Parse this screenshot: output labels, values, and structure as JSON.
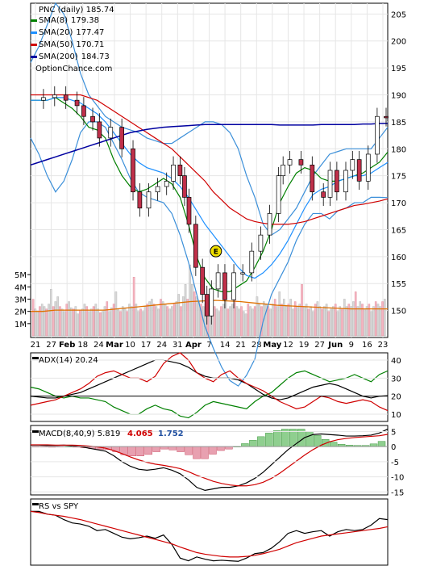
{
  "chart_data": [
    {
      "type": "candlestick",
      "panel": "price",
      "title": "PNC (daily) 185.74",
      "watermark": "OptionChance.com",
      "ylim": [
        145,
        207
      ],
      "yticks": [
        150,
        155,
        160,
        165,
        170,
        175,
        180,
        185,
        190,
        195,
        200,
        205
      ],
      "xticks": [
        "21",
        "27",
        "Feb",
        "18",
        "24",
        "Mar",
        "10",
        "17",
        "24",
        "31",
        "Apr",
        "7",
        "14",
        "21",
        "28",
        "May",
        "12",
        "19",
        "27",
        "Jun",
        "9",
        "16",
        "23"
      ],
      "annotations": [
        {
          "label": "E",
          "x": 82,
          "y": 161
        }
      ],
      "price_points": {
        "x": [
          0,
          5,
          10,
          15,
          20,
          23,
          27,
          30,
          35,
          40,
          45,
          48,
          52,
          56,
          60,
          63,
          66,
          68,
          70,
          73,
          76,
          78,
          80,
          83,
          86,
          90,
          94,
          98,
          102,
          106,
          110,
          112,
          115,
          120,
          125,
          130,
          133,
          136,
          140,
          143,
          146,
          150,
          154,
          158
        ],
        "close": [
          189,
          189.5,
          190,
          189,
          188,
          186,
          185,
          182,
          184,
          180,
          172,
          169,
          172,
          173,
          174,
          177,
          175,
          171,
          166,
          158,
          153,
          149,
          154,
          157,
          152,
          157,
          157,
          161,
          164,
          168,
          175,
          177,
          178,
          177,
          172,
          171,
          176,
          172,
          176,
          178,
          174,
          179,
          186,
          185.74
        ]
      },
      "series": [
        {
          "name": "SMA(8)",
          "legend_value": 179.38,
          "color": "#008000",
          "values": [
            189,
            189,
            189,
            189.5,
            188.5,
            187.5,
            186,
            184,
            183.5,
            182,
            178,
            175,
            173,
            172,
            172.5,
            173.5,
            174.5,
            173.5,
            171,
            166,
            160,
            156,
            154,
            153.5,
            153.5,
            154.5,
            155.5,
            158,
            161,
            165,
            170,
            173,
            175.5,
            176.5,
            176,
            174.5,
            174,
            174,
            174.5,
            175,
            175.5,
            176.5,
            177.5,
            179.38
          ]
        },
        {
          "name": "SMA(20)",
          "legend_value": 177.47,
          "color": "#1e90ff",
          "values": [
            189,
            189,
            189,
            189.5,
            189.5,
            189,
            188.5,
            187.5,
            186.5,
            185,
            183,
            181,
            179,
            177.5,
            176.5,
            176,
            175.5,
            174.5,
            173,
            171,
            168.5,
            166,
            164,
            162,
            160,
            158,
            156.5,
            156,
            157,
            158.5,
            160.5,
            163,
            166,
            169,
            171.5,
            172.5,
            173,
            174,
            174.5,
            175,
            175,
            175.5,
            176.5,
            177.47
          ]
        },
        {
          "name": "SMA(50)",
          "legend_value": 170.71,
          "color": "#d00000",
          "values": [
            190,
            190,
            190,
            190,
            190,
            190,
            190,
            189.5,
            189,
            188,
            187,
            186,
            185,
            184,
            183,
            182,
            181,
            180,
            178.5,
            177,
            175.5,
            174,
            172,
            170.5,
            169,
            168,
            167,
            166.5,
            166.2,
            166,
            166,
            166,
            166.2,
            166.5,
            167,
            167.5,
            168,
            168.5,
            169,
            169.5,
            169.7,
            170,
            170.3,
            170.71
          ]
        },
        {
          "name": "SMA(200)",
          "legend_value": 184.73,
          "color": "#0000a0",
          "values": [
            177,
            177.5,
            178,
            178.5,
            179,
            179.5,
            180,
            180.5,
            181,
            181.5,
            182,
            182.5,
            183,
            183.3,
            183.6,
            183.8,
            184,
            184.1,
            184.2,
            184.3,
            184.4,
            184.5,
            184.5,
            184.5,
            184.5,
            184.5,
            184.5,
            184.5,
            184.5,
            184.5,
            184.4,
            184.4,
            184.4,
            184.4,
            184.4,
            184.5,
            184.5,
            184.5,
            184.5,
            184.5,
            184.6,
            184.6,
            184.7,
            184.73
          ]
        }
      ],
      "bollinger": {
        "upper": [
          196,
          199,
          203,
          207,
          205,
          200,
          194,
          190,
          188,
          186,
          185,
          184,
          183.5,
          183,
          182,
          181.5,
          181,
          181,
          182,
          183,
          184,
          185,
          185,
          184.5,
          183,
          180,
          175,
          171,
          166,
          164,
          165,
          167,
          169,
          172,
          175,
          177,
          179,
          179.5,
          180,
          180,
          180,
          180,
          182,
          184
        ]
      }
    },
    {
      "type": "bar",
      "panel": "volume",
      "yticks": [
        "1M",
        "2M",
        "3M",
        "4M",
        "5M"
      ],
      "ylim": [
        0,
        6
      ],
      "values": [
        3.0,
        2.2,
        2.0,
        2.4,
        2.6,
        2.4,
        2.2,
        2.6,
        3.8,
        2.4,
        2.8,
        3.2,
        2.4,
        2.2,
        2.0,
        2.6,
        2.8,
        2.3,
        2.2,
        2.4,
        1.8,
        2.1,
        2.2,
        2.6,
        2.4,
        2.0,
        2.2,
        2.4,
        2.6,
        2.2,
        1.9,
        2.0,
        2.4,
        2.8,
        2.0,
        2.3,
        2.6,
        3.6,
        2.2,
        2.0,
        2.4,
        2.3,
        2.0,
        2.6,
        2.4,
        4.8,
        2.6,
        2.0,
        2.2,
        2.0,
        2.4,
        2.6,
        2.8,
        3.0,
        2.6,
        2.4,
        2.2,
        3.0,
        2.8,
        2.6,
        2.4,
        2.2,
        2.4,
        2.6,
        2.8,
        3.4,
        2.4,
        3.2,
        4.2,
        3.0,
        5.8,
        4.2,
        3.6,
        3.2,
        2.8,
        2.6,
        2.4,
        2.6,
        2.2,
        2.0,
        2.6,
        2.4,
        2.2,
        2.0,
        2.4,
        2.6,
        2.8,
        2.2,
        2.4,
        2.6,
        3.8,
        2.4,
        2.2,
        2.4,
        2.0,
        1.8,
        2.6,
        2.4,
        2.2,
        2.4,
        3.2,
        2.6,
        2.4,
        2.8,
        2.6,
        2.4,
        2.2,
        2.6,
        3.0,
        2.4,
        3.6,
        2.6,
        3.0,
        2.4,
        2.6,
        3.0,
        2.2,
        2.8,
        2.4,
        2.6,
        4.2,
        2.4,
        2.6,
        2.2,
        2.4,
        2.0,
        2.6,
        2.8,
        2.4,
        2.2,
        2.4,
        2.6,
        2.0,
        2.2,
        2.4,
        2.6,
        2.0,
        2.4,
        2.2,
        3.0,
        2.4,
        2.6,
        2.4,
        2.8,
        3.6,
        2.4,
        2.8,
        2.6,
        2.2,
        2.4,
        2.6,
        2.0,
        2.4,
        2.8,
        2.6,
        2.4,
        2.8,
        3.0
      ],
      "average": [
        2.0,
        2.0,
        2.1,
        2.1,
        2.1,
        2.1,
        2.1,
        2.2,
        2.3,
        2.4,
        2.5,
        2.6,
        2.7,
        2.8,
        2.85,
        2.9,
        2.85,
        2.8,
        2.7,
        2.6,
        2.5,
        2.45,
        2.4,
        2.35,
        2.3,
        2.25,
        2.2,
        2.2,
        2.2,
        2.2
      ],
      "average_color": "#e07000"
    },
    {
      "type": "line",
      "panel": "ADX",
      "title": "ADX(14) 20.24",
      "ylim": [
        6,
        44
      ],
      "yticks": [
        10,
        20,
        30,
        40
      ],
      "series": [
        {
          "name": "ADX",
          "color": "#000000",
          "values": [
            20,
            19.5,
            19,
            19,
            20,
            21,
            22,
            24,
            26,
            28,
            30,
            32,
            34,
            36,
            38,
            40,
            40,
            39,
            38,
            36,
            33,
            31,
            30,
            30,
            30,
            29,
            27,
            24,
            21,
            19,
            18,
            19,
            21,
            23,
            25,
            26,
            27,
            26,
            24,
            22,
            20,
            19,
            20,
            20.24
          ]
        },
        {
          "name": "+DI",
          "color": "#008000",
          "values": [
            25,
            24,
            22,
            20,
            19,
            20,
            19,
            19,
            18,
            17,
            14,
            12,
            10,
            10,
            13,
            15,
            13,
            12,
            9,
            8,
            11,
            15,
            17,
            16,
            15,
            14,
            13,
            17,
            20,
            22,
            26,
            30,
            33,
            34,
            32,
            30,
            28,
            29,
            30,
            32,
            30,
            28,
            32,
            34
          ]
        },
        {
          "name": "-DI",
          "color": "#d00000",
          "values": [
            15,
            16,
            17,
            18,
            20,
            22,
            24,
            27,
            31,
            33,
            34,
            32,
            30,
            30,
            28,
            31,
            38,
            42,
            44,
            40,
            33,
            30,
            28,
            32,
            34,
            30,
            27,
            25,
            23,
            20,
            17,
            15,
            13,
            14,
            17,
            20,
            19,
            17,
            16,
            17,
            18,
            17,
            14,
            12
          ]
        }
      ]
    },
    {
      "type": "line",
      "panel": "MACD",
      "title": "MACD(8,40,9) 5.819",
      "title_values": [
        "4.065",
        "1.752"
      ],
      "title_value_colors": [
        "#d00000",
        "#1f4fa0"
      ],
      "ylim": [
        -16,
        7
      ],
      "yticks": [
        5,
        0,
        -5,
        -10,
        -15
      ],
      "series": [
        {
          "name": "MACD",
          "color": "#000000",
          "values": [
            0.5,
            0.5,
            0.4,
            0.4,
            0.5,
            0.3,
            0,
            -0.5,
            -1,
            -1.5,
            -3,
            -5,
            -6.5,
            -7.5,
            -7.8,
            -7.5,
            -7,
            -7.8,
            -9,
            -11,
            -13.5,
            -14.5,
            -14,
            -13.5,
            -13.5,
            -13,
            -12,
            -10.5,
            -8.5,
            -6,
            -3.5,
            -1,
            1,
            3,
            4,
            4.2,
            4,
            3.8,
            3.5,
            3.5,
            3.6,
            3.8,
            4.5,
            5.819
          ]
        },
        {
          "name": "Signal",
          "color": "#d00000",
          "values": [
            0.6,
            0.6,
            0.6,
            0.5,
            0.5,
            0.5,
            0.4,
            0.2,
            -0.1,
            -0.5,
            -1.3,
            -2.3,
            -3.4,
            -4.4,
            -5.2,
            -5.8,
            -6.2,
            -6.7,
            -7.3,
            -8.3,
            -9.5,
            -10.5,
            -11.5,
            -12.2,
            -12.7,
            -13,
            -13,
            -12.6,
            -11.8,
            -10.5,
            -8.8,
            -6.8,
            -4.8,
            -2.8,
            -1,
            0.5,
            1.6,
            2.3,
            2.7,
            3,
            3.2,
            3.4,
            3.6,
            4.065
          ]
        },
        {
          "name": "Histogram",
          "color": "#2a8a2a",
          "values": [
            -0.1,
            -0.1,
            -0.2,
            -0.1,
            0,
            -0.2,
            -0.4,
            -0.7,
            -0.9,
            -1.0,
            -1.7,
            -2.7,
            -3.1,
            -3.1,
            -2.6,
            -1.7,
            -0.8,
            -1.1,
            -1.7,
            -2.7,
            -4.0,
            -4.0,
            -2.5,
            -1.3,
            -0.8,
            0,
            1.0,
            2.1,
            3.3,
            4.5,
            5.3,
            5.8,
            5.8,
            5.8,
            5.0,
            3.7,
            2.4,
            1.5,
            0.8,
            0.5,
            0.4,
            0.4,
            0.9,
            1.752
          ]
        }
      ]
    },
    {
      "type": "line",
      "panel": "RS vs SPY",
      "title": "RS vs SPY",
      "series": [
        {
          "name": "RS",
          "color": "#000000",
          "values": [
            0.95,
            0.95,
            0.9,
            0.88,
            0.8,
            0.74,
            0.72,
            0.68,
            0.6,
            0.62,
            0.55,
            0.48,
            0.45,
            0.47,
            0.5,
            0.46,
            0.52,
            0.35,
            0.1,
            0.05,
            0.12,
            0.08,
            0.05,
            0.06,
            0.05,
            0.04,
            0.1,
            0.18,
            0.2,
            0.28,
            0.4,
            0.55,
            0.6,
            0.55,
            0.58,
            0.6,
            0.5,
            0.58,
            0.62,
            0.6,
            0.62,
            0.7,
            0.82,
            0.8
          ]
        },
        {
          "name": "RS average",
          "color": "#d00000",
          "values": [
            0.95,
            0.93,
            0.9,
            0.88,
            0.86,
            0.83,
            0.8,
            0.76,
            0.72,
            0.68,
            0.64,
            0.6,
            0.56,
            0.52,
            0.48,
            0.44,
            0.4,
            0.36,
            0.3,
            0.25,
            0.2,
            0.17,
            0.15,
            0.13,
            0.12,
            0.12,
            0.13,
            0.15,
            0.18,
            0.22,
            0.26,
            0.32,
            0.38,
            0.42,
            0.46,
            0.5,
            0.52,
            0.54,
            0.56,
            0.58,
            0.6,
            0.62,
            0.64,
            0.67
          ]
        }
      ]
    }
  ]
}
